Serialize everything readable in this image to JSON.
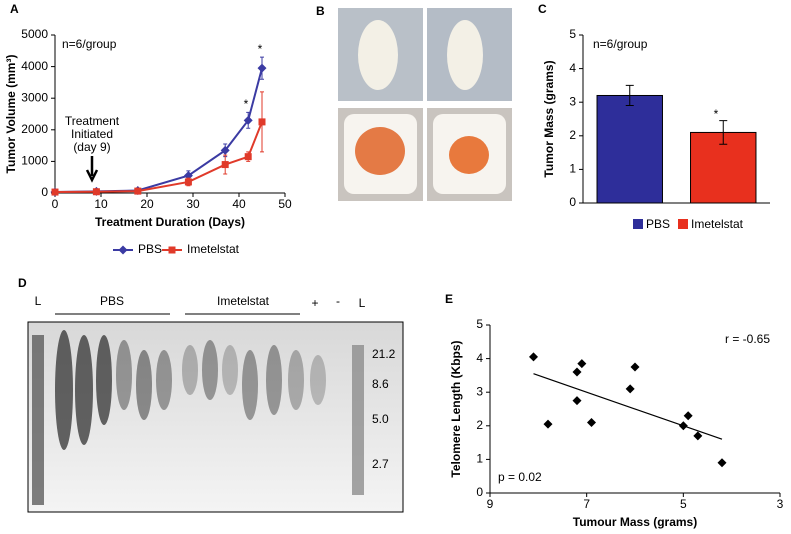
{
  "chart_data": [
    {
      "type": "line",
      "panel": "A",
      "xlabel": "Treatment Duration (Days)",
      "ylabel": "Tumor Volume (mm³)",
      "x": [
        0,
        9,
        18,
        29,
        37,
        42,
        45
      ],
      "series": [
        {
          "name": "PBS",
          "color": "#3b3ba3",
          "values": [
            30,
            50,
            80,
            550,
            1350,
            2300,
            3950
          ],
          "errors": [
            20,
            20,
            20,
            150,
            200,
            250,
            350
          ]
        },
        {
          "name": "Imetelstat",
          "color": "#e03a2a",
          "values": [
            30,
            40,
            60,
            350,
            900,
            1150,
            2250
          ],
          "errors": [
            20,
            20,
            20,
            120,
            300,
            150,
            950
          ]
        }
      ],
      "xlim": [
        0,
        50
      ],
      "xticks": [
        0,
        10,
        20,
        30,
        40,
        50
      ],
      "ylim": [
        0,
        5000
      ],
      "yticks": [
        0,
        1000,
        2000,
        3000,
        4000,
        5000
      ],
      "annotations": [
        "n=6/group",
        "Treatment",
        "Initiated",
        "(day 9)",
        "*",
        "*"
      ]
    },
    {
      "type": "bar",
      "panel": "C",
      "ylabel": "Tumor Mass (grams)",
      "categories": [
        "PBS",
        "Imetelstat"
      ],
      "colors": [
        "#2e2e9a",
        "#e8301e"
      ],
      "values": [
        3.2,
        2.1
      ],
      "errors": [
        0.3,
        0.35
      ],
      "ylim": [
        0,
        5
      ],
      "yticks": [
        0,
        1,
        2,
        3,
        4,
        5
      ],
      "annotations": [
        "n=6/group",
        "*"
      ]
    },
    {
      "type": "scatter",
      "panel": "E",
      "xlabel": "Tumour Mass (grams)",
      "ylabel": "Telomere Length (Kbps)",
      "color": "#000000",
      "x": [
        8.1,
        7.8,
        7.2,
        7.1,
        7.2,
        6.9,
        6.1,
        6.0,
        5.0,
        4.9,
        4.7,
        4.2
      ],
      "values": [
        4.05,
        2.05,
        3.6,
        3.85,
        2.75,
        2.1,
        3.1,
        3.75,
        2.0,
        2.3,
        1.7,
        0.9
      ],
      "trendline": {
        "x": [
          8.1,
          4.2
        ],
        "y": [
          3.55,
          1.6
        ]
      },
      "xlim": [
        9,
        3
      ],
      "xticks": [
        9,
        7,
        5,
        3
      ],
      "ylim": [
        0,
        5
      ],
      "yticks": [
        0,
        1,
        2,
        3,
        4,
        5
      ],
      "annotations": [
        "r = -0.65",
        "p = 0.02"
      ]
    }
  ],
  "photos": {
    "panel": "B"
  },
  "gel": {
    "panel": "D",
    "lane_labels": [
      "L",
      "PBS",
      "Imetelstat",
      "+",
      "-",
      "L"
    ],
    "size_markers": [
      "21.2",
      "8.6",
      "5.0",
      "2.7"
    ]
  }
}
